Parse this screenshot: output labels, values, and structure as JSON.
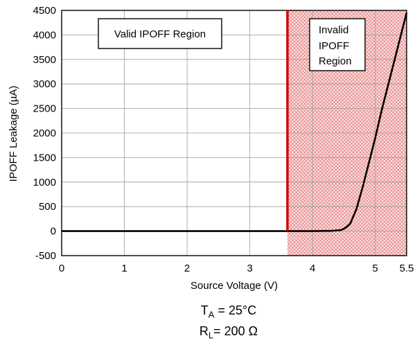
{
  "chart_data": {
    "type": "line",
    "title": "",
    "xlabel": "Source Voltage (V)",
    "ylabel": "IPOFF Leakage (µA)",
    "xlim": [
      0,
      5.5
    ],
    "ylim": [
      -500,
      4500
    ],
    "xticks": [
      0,
      1,
      2,
      3,
      4,
      5,
      5.5
    ],
    "xtick_labels": [
      "0",
      "1",
      "2",
      "3",
      "4",
      "5",
      "5.5"
    ],
    "yticks": [
      -500,
      0,
      500,
      1000,
      1500,
      2000,
      2500,
      3000,
      3500,
      4000,
      4500
    ],
    "ytick_labels": [
      "-500",
      "0",
      "500",
      "1000",
      "1500",
      "2000",
      "2500",
      "3000",
      "3500",
      "4000",
      "4500"
    ],
    "grid": true,
    "threshold_x": 3.6,
    "threshold_color": "#d40000",
    "invalid_region_color": "#d40000",
    "series": [
      {
        "color": "#000000",
        "x": [
          0,
          1,
          2,
          3,
          3.6,
          4.0,
          4.3,
          4.45,
          4.5,
          4.55,
          4.6,
          4.7,
          4.8,
          4.9,
          5.0,
          5.1,
          5.2,
          5.3,
          5.4,
          5.5
        ],
        "y": [
          0,
          0,
          0,
          0,
          0,
          0,
          5,
          20,
          50,
          90,
          150,
          450,
          900,
          1400,
          1900,
          2450,
          2950,
          3450,
          3950,
          4450
        ]
      }
    ],
    "annotations": [
      {
        "text_lines": [
          "Valid IPOFF Region"
        ]
      },
      {
        "text_lines": [
          "Invalid",
          "IPOFF",
          "Region"
        ]
      }
    ]
  },
  "conditions": {
    "ta_main": "T",
    "ta_sub": "A",
    "ta_rest": " = 25°C",
    "rl_main": "R",
    "rl_sub": "L",
    "rl_rest": "= 200 Ω"
  }
}
